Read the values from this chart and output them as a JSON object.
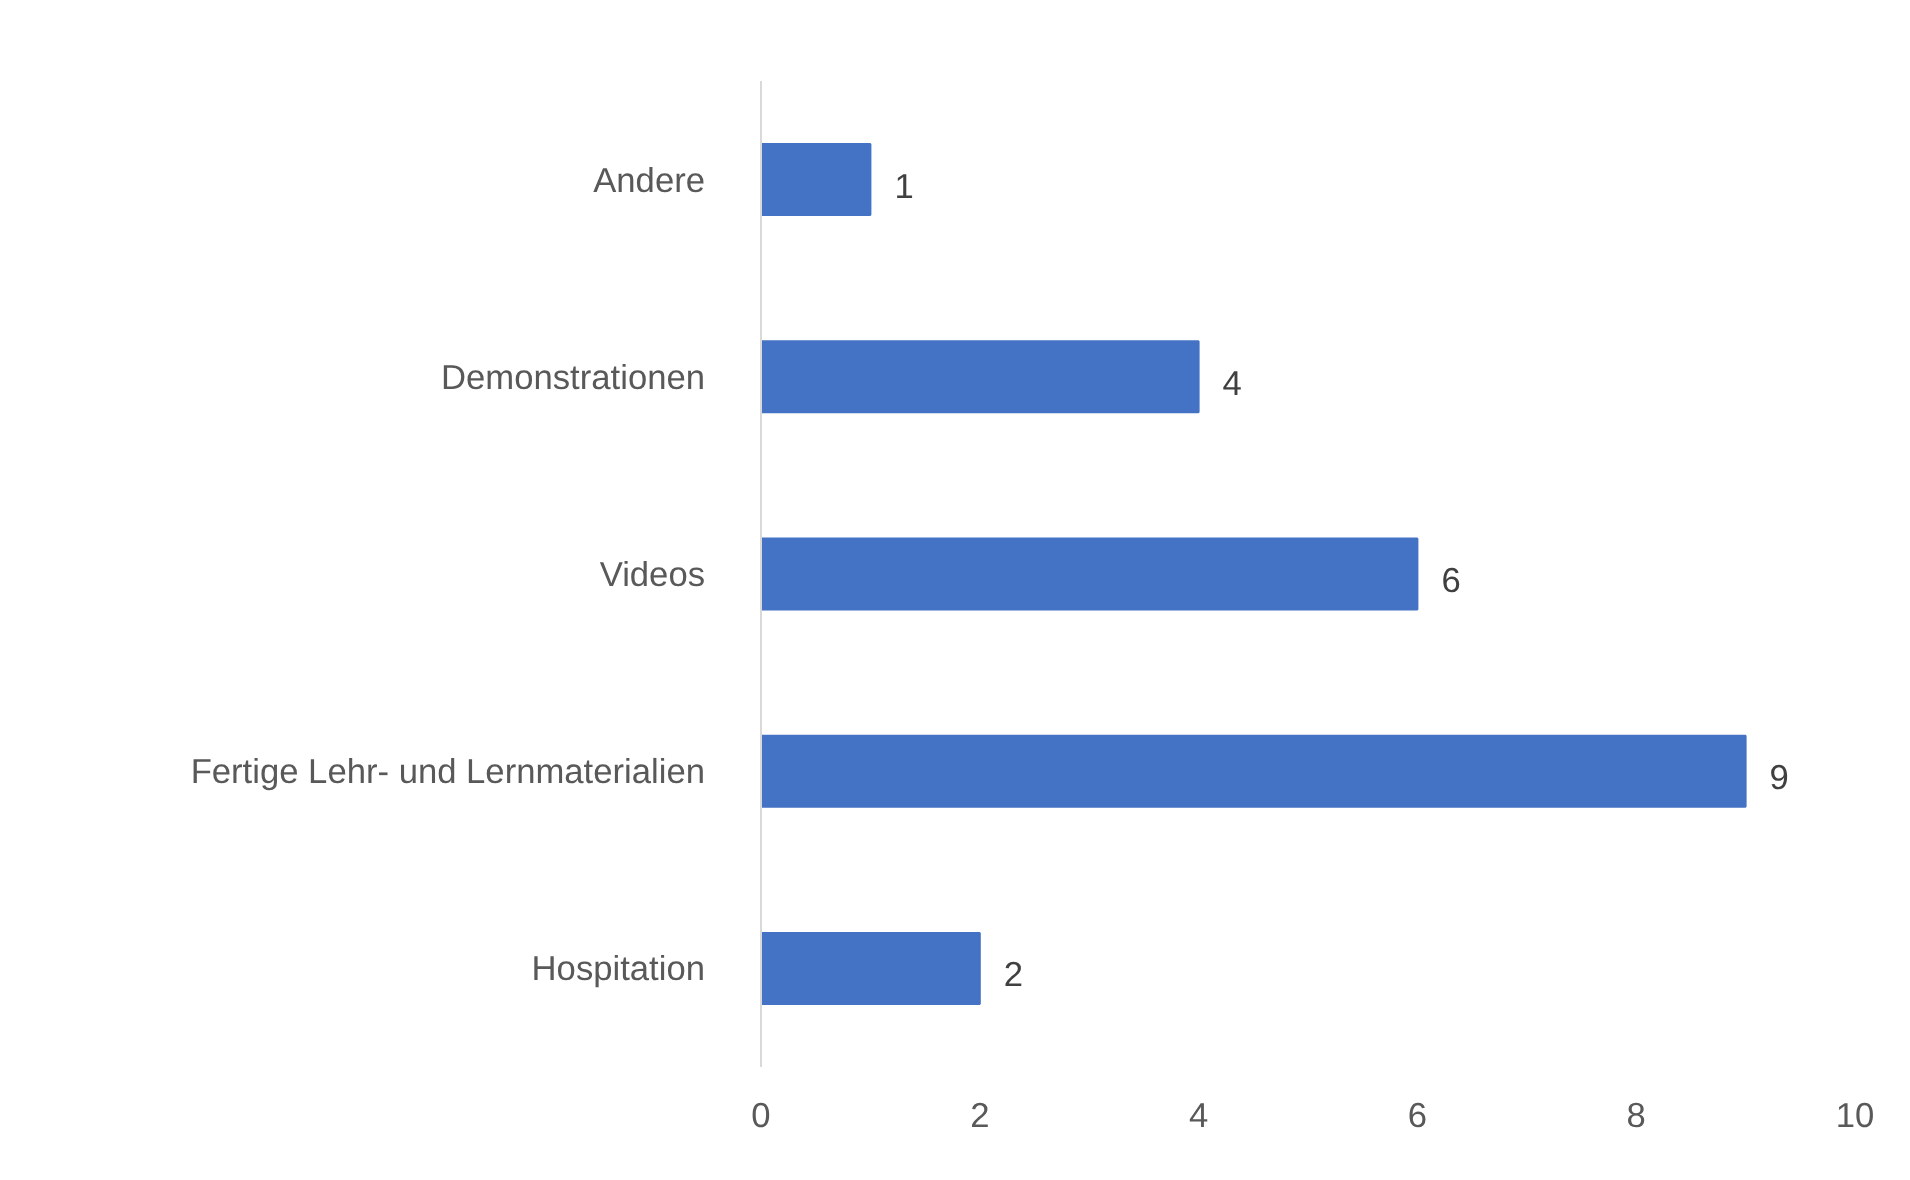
{
  "chart_data": {
    "type": "bar",
    "orientation": "horizontal",
    "categories": [
      "Andere",
      "Demonstrationen",
      "Videos",
      "Fertige Lehr- und Lernmaterialien",
      "Hospitation"
    ],
    "values": [
      1,
      4,
      6,
      9,
      2
    ],
    "color": "#4472c4",
    "xlim": [
      0,
      10
    ],
    "xticks": [
      0,
      2,
      4,
      6,
      8,
      10
    ],
    "data_labels": true,
    "grid": false
  }
}
